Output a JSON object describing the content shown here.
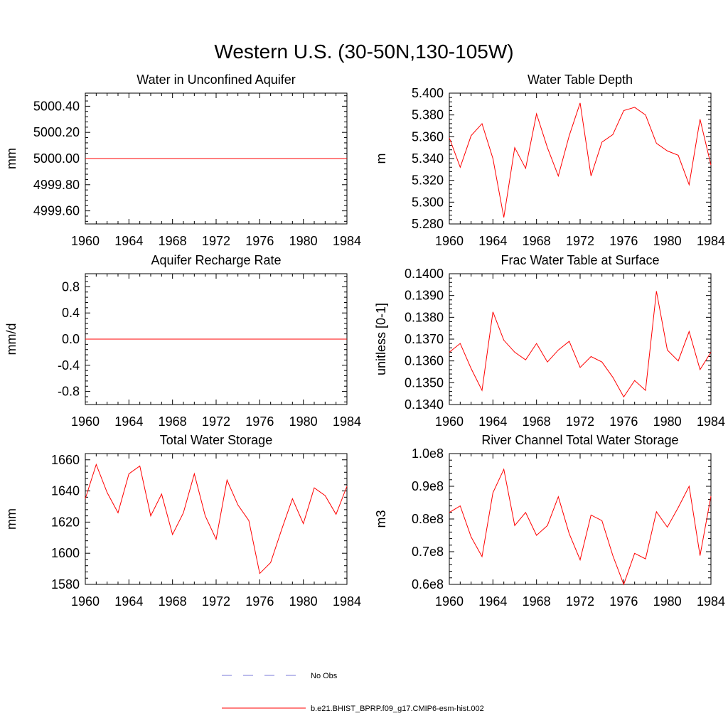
{
  "figure": {
    "title": "Western U.S. (30-50N,130-105W)"
  },
  "colors": {
    "model_line": "#ff0000",
    "obs_line": "#7a7ad8",
    "axes": "#000000"
  },
  "legend": {
    "entries": [
      {
        "label": "No Obs",
        "style": "dashed",
        "color": "#7a7ad8"
      },
      {
        "label": "b.e21.BHIST_BPRP.f09_g17.CMIP6-esm-hist.002",
        "style": "solid",
        "color": "#ff0000"
      }
    ]
  },
  "chart_data": [
    {
      "type": "line",
      "title": "Water in Unconfined Aquifer",
      "xlabel": "",
      "ylabel": "mm",
      "xlim": [
        1960,
        1984
      ],
      "ylim": [
        4999.5,
        5000.5
      ],
      "yticks": [
        4999.6,
        4999.8,
        5000.0,
        5000.2,
        5000.4
      ],
      "yticklabels": [
        "4999.60",
        "4999.80",
        "5000.00",
        "5000.20",
        "5000.40"
      ],
      "xticks": [
        1960,
        1964,
        1968,
        1972,
        1976,
        1980,
        1984
      ],
      "xticklabels": [
        "1960",
        "1964",
        "1968",
        "1972",
        "1976",
        "1980",
        "1984"
      ],
      "x": [
        1960,
        1961,
        1962,
        1963,
        1964,
        1965,
        1966,
        1967,
        1968,
        1969,
        1970,
        1971,
        1972,
        1973,
        1974,
        1975,
        1976,
        1977,
        1978,
        1979,
        1980,
        1981,
        1982,
        1983,
        1984
      ],
      "series": [
        {
          "name": "b.e21.BHIST_BPRP.f09_g17.CMIP6-esm-hist.002",
          "values": [
            5000,
            5000,
            5000,
            5000,
            5000,
            5000,
            5000,
            5000,
            5000,
            5000,
            5000,
            5000,
            5000,
            5000,
            5000,
            5000,
            5000,
            5000,
            5000,
            5000,
            5000,
            5000,
            5000,
            5000,
            5000
          ]
        }
      ]
    },
    {
      "type": "line",
      "title": "Water Table Depth",
      "xlabel": "",
      "ylabel": "m",
      "xlim": [
        1960,
        1984
      ],
      "ylim": [
        5.28,
        5.4
      ],
      "yticks": [
        5.28,
        5.3,
        5.32,
        5.34,
        5.36,
        5.38,
        5.4
      ],
      "yticklabels": [
        "5.280",
        "5.300",
        "5.320",
        "5.340",
        "5.360",
        "5.380",
        "5.400"
      ],
      "xticks": [
        1960,
        1964,
        1968,
        1972,
        1976,
        1980,
        1984
      ],
      "xticklabels": [
        "1960",
        "1964",
        "1968",
        "1972",
        "1976",
        "1980",
        "1984"
      ],
      "x": [
        1960,
        1961,
        1962,
        1963,
        1964,
        1965,
        1966,
        1967,
        1968,
        1969,
        1970,
        1971,
        1972,
        1973,
        1974,
        1975,
        1976,
        1977,
        1978,
        1979,
        1980,
        1981,
        1982,
        1983,
        1984
      ],
      "series": [
        {
          "name": "b.e21.BHIST_BPRP.f09_g17.CMIP6-esm-hist.002",
          "values": [
            5.359,
            5.332,
            5.361,
            5.372,
            5.34,
            5.286,
            5.35,
            5.331,
            5.381,
            5.35,
            5.324,
            5.361,
            5.391,
            5.324,
            5.355,
            5.362,
            5.384,
            5.387,
            5.38,
            5.354,
            5.347,
            5.343,
            5.316,
            5.376,
            5.334
          ]
        }
      ]
    },
    {
      "type": "line",
      "title": "Aquifer Recharge Rate",
      "xlabel": "",
      "ylabel": "mm/d",
      "xlim": [
        1960,
        1984
      ],
      "ylim": [
        -1.0,
        1.0
      ],
      "yticks": [
        -0.8,
        -0.4,
        0.0,
        0.4,
        0.8
      ],
      "yticklabels": [
        "-0.8",
        "-0.4",
        "0.0",
        "0.4",
        "0.8"
      ],
      "xticks": [
        1960,
        1964,
        1968,
        1972,
        1976,
        1980,
        1984
      ],
      "xticklabels": [
        "1960",
        "1964",
        "1968",
        "1972",
        "1976",
        "1980",
        "1984"
      ],
      "x": [
        1960,
        1961,
        1962,
        1963,
        1964,
        1965,
        1966,
        1967,
        1968,
        1969,
        1970,
        1971,
        1972,
        1973,
        1974,
        1975,
        1976,
        1977,
        1978,
        1979,
        1980,
        1981,
        1982,
        1983,
        1984
      ],
      "series": [
        {
          "name": "b.e21.BHIST_BPRP.f09_g17.CMIP6-esm-hist.002",
          "values": [
            0,
            0,
            0,
            0,
            0,
            0,
            0,
            0,
            0,
            0,
            0,
            0,
            0,
            0,
            0,
            0,
            0,
            0,
            0,
            0,
            0,
            0,
            0,
            0,
            0
          ]
        }
      ]
    },
    {
      "type": "line",
      "title": "Frac Water Table at Surface",
      "xlabel": "",
      "ylabel": "unitless [0-1]",
      "xlim": [
        1960,
        1984
      ],
      "ylim": [
        0.134,
        0.14
      ],
      "yticks": [
        0.134,
        0.135,
        0.136,
        0.137,
        0.138,
        0.139,
        0.14
      ],
      "yticklabels": [
        "0.1340",
        "0.1350",
        "0.1360",
        "0.1370",
        "0.1380",
        "0.1390",
        "0.1400"
      ],
      "xticks": [
        1960,
        1964,
        1968,
        1972,
        1976,
        1980,
        1984
      ],
      "xticklabels": [
        "1960",
        "1964",
        "1968",
        "1972",
        "1976",
        "1980",
        "1984"
      ],
      "x": [
        1960,
        1961,
        1962,
        1963,
        1964,
        1965,
        1966,
        1967,
        1968,
        1969,
        1970,
        1971,
        1972,
        1973,
        1974,
        1975,
        1976,
        1977,
        1978,
        1979,
        1980,
        1981,
        1982,
        1983,
        1984
      ],
      "series": [
        {
          "name": "b.e21.BHIST_BPRP.f09_g17.CMIP6-esm-hist.002",
          "values": [
            0.1364,
            0.1368,
            0.13565,
            0.13465,
            0.13825,
            0.13695,
            0.1364,
            0.13605,
            0.1368,
            0.13595,
            0.1365,
            0.1369,
            0.1357,
            0.1362,
            0.13595,
            0.13525,
            0.13435,
            0.1351,
            0.13465,
            0.1392,
            0.1365,
            0.136,
            0.13735,
            0.1356,
            0.1364
          ]
        }
      ]
    },
    {
      "type": "line",
      "title": "Total Water Storage",
      "xlabel": "",
      "ylabel": "mm",
      "xlim": [
        1960,
        1984
      ],
      "ylim": [
        1580,
        1664
      ],
      "yticks": [
        1580,
        1600,
        1620,
        1640,
        1660
      ],
      "yticklabels": [
        "1580",
        "1600",
        "1620",
        "1640",
        "1660"
      ],
      "xticks": [
        1960,
        1964,
        1968,
        1972,
        1976,
        1980,
        1984
      ],
      "xticklabels": [
        "1960",
        "1964",
        "1968",
        "1972",
        "1976",
        "1980",
        "1984"
      ],
      "x": [
        1960,
        1961,
        1962,
        1963,
        1964,
        1965,
        1966,
        1967,
        1968,
        1969,
        1970,
        1971,
        1972,
        1973,
        1974,
        1975,
        1976,
        1977,
        1978,
        1979,
        1980,
        1981,
        1982,
        1983,
        1984
      ],
      "series": [
        {
          "name": "b.e21.BHIST_BPRP.f09_g17.CMIP6-esm-hist.002",
          "values": [
            1635,
            1657,
            1639,
            1626,
            1651,
            1656,
            1624,
            1638,
            1612,
            1626,
            1651,
            1624,
            1609,
            1647,
            1631,
            1621,
            1587,
            1594,
            1615,
            1635,
            1619,
            1642,
            1637,
            1625,
            1643
          ]
        }
      ]
    },
    {
      "type": "line",
      "title": "River Channel Total Water Storage",
      "xlabel": "",
      "ylabel": "m3",
      "xlim": [
        1960,
        1984
      ],
      "ylim": [
        60000000,
        100000000
      ],
      "yticks": [
        60000000,
        70000000,
        80000000,
        90000000,
        100000000
      ],
      "yticklabels": [
        "0.6e8",
        "0.7e8",
        "0.8e8",
        "0.9e8",
        "1.0e8"
      ],
      "xticks": [
        1960,
        1964,
        1968,
        1972,
        1976,
        1980,
        1984
      ],
      "xticklabels": [
        "1960",
        "1964",
        "1968",
        "1972",
        "1976",
        "1980",
        "1984"
      ],
      "x": [
        1960,
        1961,
        1962,
        1963,
        1964,
        1965,
        1966,
        1967,
        1968,
        1969,
        1970,
        1971,
        1972,
        1973,
        1974,
        1975,
        1976,
        1977,
        1978,
        1979,
        1980,
        1981,
        1982,
        1983,
        1984
      ],
      "series": [
        {
          "name": "b.e21.BHIST_BPRP.f09_g17.CMIP6-esm-hist.002",
          "values": [
            82000000,
            84000000,
            74500000,
            68500000,
            88000000,
            95200000,
            78000000,
            82000000,
            75000000,
            78000000,
            86800000,
            75500000,
            67500000,
            81200000,
            79500000,
            68800000,
            60000000,
            69500000,
            67800000,
            82200000,
            77500000,
            83500000,
            90000000,
            68800000,
            87000000
          ]
        }
      ]
    }
  ]
}
